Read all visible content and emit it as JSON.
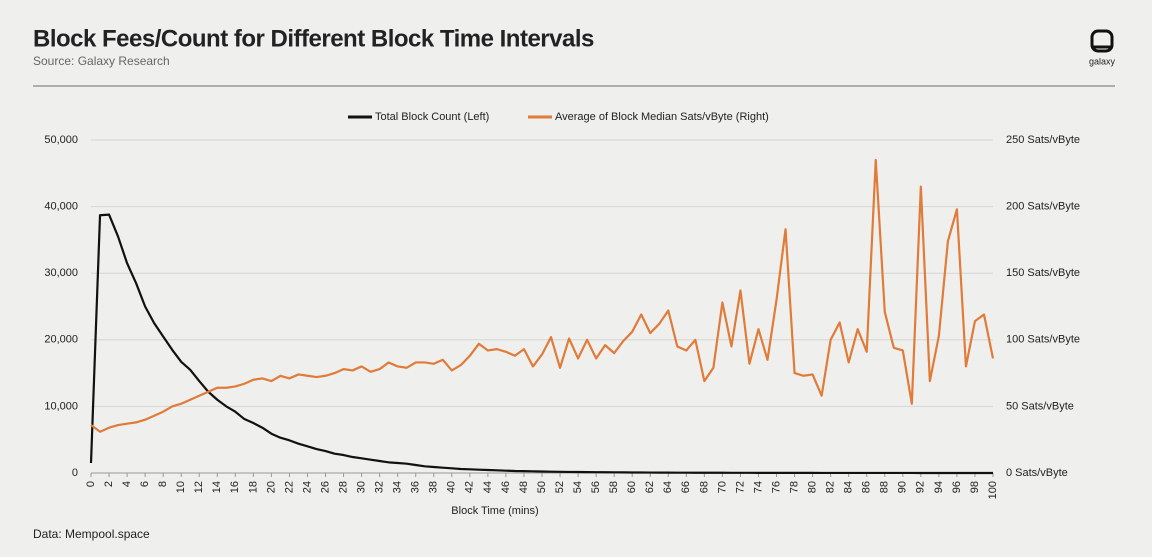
{
  "chart_data": {
    "type": "line",
    "title": "Block Fees/Count for Different Block Time Intervals",
    "subtitle": "Source: Galaxy Research",
    "logo_text": "galaxy",
    "footnote": "Data: Mempool.space",
    "xlabel": "Block Time (mins)",
    "x": [
      0,
      1,
      2,
      3,
      4,
      5,
      6,
      7,
      8,
      9,
      10,
      11,
      12,
      13,
      14,
      15,
      16,
      17,
      18,
      19,
      20,
      21,
      22,
      23,
      24,
      25,
      26,
      27,
      28,
      29,
      30,
      31,
      32,
      33,
      34,
      35,
      36,
      37,
      38,
      39,
      40,
      41,
      42,
      43,
      44,
      45,
      46,
      47,
      48,
      49,
      50,
      51,
      52,
      53,
      54,
      55,
      56,
      57,
      58,
      59,
      60,
      61,
      62,
      63,
      64,
      65,
      66,
      67,
      68,
      69,
      70,
      71,
      72,
      73,
      74,
      75,
      76,
      77,
      78,
      79,
      80,
      81,
      82,
      83,
      84,
      85,
      86,
      87,
      88,
      89,
      90,
      91,
      92,
      93,
      94,
      95,
      96,
      97,
      98,
      99,
      100
    ],
    "xlim": [
      0,
      100
    ],
    "xticks": [
      0,
      2,
      4,
      6,
      8,
      10,
      12,
      14,
      16,
      18,
      20,
      22,
      24,
      26,
      28,
      30,
      32,
      34,
      36,
      38,
      40,
      42,
      44,
      46,
      48,
      50,
      52,
      54,
      56,
      58,
      60,
      62,
      64,
      66,
      68,
      70,
      72,
      74,
      76,
      78,
      80,
      82,
      84,
      86,
      88,
      90,
      92,
      94,
      96,
      98,
      100
    ],
    "ylim": [
      0,
      50000
    ],
    "yticks": [
      0,
      {
        "value": 10000,
        "label": "10,000"
      },
      {
        "value": 20000,
        "label": "20,000"
      },
      {
        "value": 30000,
        "label": "30,000"
      },
      {
        "value": 40000,
        "label": "40,000"
      },
      {
        "value": 50000,
        "label": "50,000"
      }
    ],
    "y2lim": [
      0,
      250
    ],
    "y2ticks": [
      {
        "value": 0,
        "label": "0 Sats/vByte"
      },
      {
        "value": 50,
        "label": "50 Sats/vByte"
      },
      {
        "value": 100,
        "label": "100 Sats/vByte"
      },
      {
        "value": 150,
        "label": "150 Sats/vByte"
      },
      {
        "value": 200,
        "label": "200 Sats/vByte"
      },
      {
        "value": 250,
        "label": "250 Sats/vByte"
      }
    ],
    "grid": true,
    "legend": "top",
    "series": [
      {
        "name": "Total Block Count (Left)",
        "color": "#111111",
        "axis": "y",
        "values": [
          1500,
          38700,
          38800,
          35500,
          31500,
          28500,
          25000,
          22500,
          20500,
          18500,
          16700,
          15500,
          13800,
          12200,
          11000,
          10000,
          9200,
          8100,
          7500,
          6800,
          5900,
          5300,
          4900,
          4400,
          4000,
          3600,
          3300,
          2900,
          2700,
          2400,
          2200,
          2000,
          1800,
          1600,
          1500,
          1400,
          1200,
          1000,
          900,
          800,
          700,
          600,
          550,
          500,
          450,
          400,
          350,
          300,
          280,
          250,
          220,
          200,
          180,
          160,
          150,
          130,
          120,
          110,
          100,
          90,
          80,
          70,
          65,
          60,
          55,
          50,
          45,
          40,
          38,
          35,
          32,
          30,
          28,
          26,
          24,
          22,
          20,
          18,
          16,
          15,
          14,
          13,
          12,
          11,
          10,
          9,
          8,
          8,
          7,
          7,
          6,
          6,
          5,
          5,
          4,
          4,
          3,
          3,
          3,
          2,
          2
        ]
      },
      {
        "name": "Average of Block Median Sats/vByte (Right)",
        "color": "#e07b39",
        "axis": "y2",
        "values": [
          36,
          31,
          34,
          36,
          37,
          38,
          40,
          43,
          46,
          50,
          52,
          55,
          58,
          61,
          64,
          64,
          65,
          67,
          70,
          71,
          69,
          73,
          71,
          74,
          73,
          72,
          73,
          75,
          78,
          77,
          80,
          76,
          78,
          83,
          80,
          79,
          83,
          83,
          82,
          85,
          77,
          81,
          88,
          97,
          92,
          93,
          91,
          88,
          93,
          80,
          89,
          102,
          79,
          101,
          86,
          100,
          86,
          96,
          90,
          99,
          106,
          119,
          105,
          112,
          122,
          95,
          92,
          100,
          69,
          79,
          128,
          95,
          137,
          82,
          108,
          85,
          130,
          183,
          75,
          73,
          74,
          58,
          100,
          113,
          83,
          108,
          91,
          235,
          121,
          94,
          92,
          52,
          215,
          69,
          103,
          174,
          198,
          80,
          114,
          119,
          86
        ]
      }
    ]
  }
}
